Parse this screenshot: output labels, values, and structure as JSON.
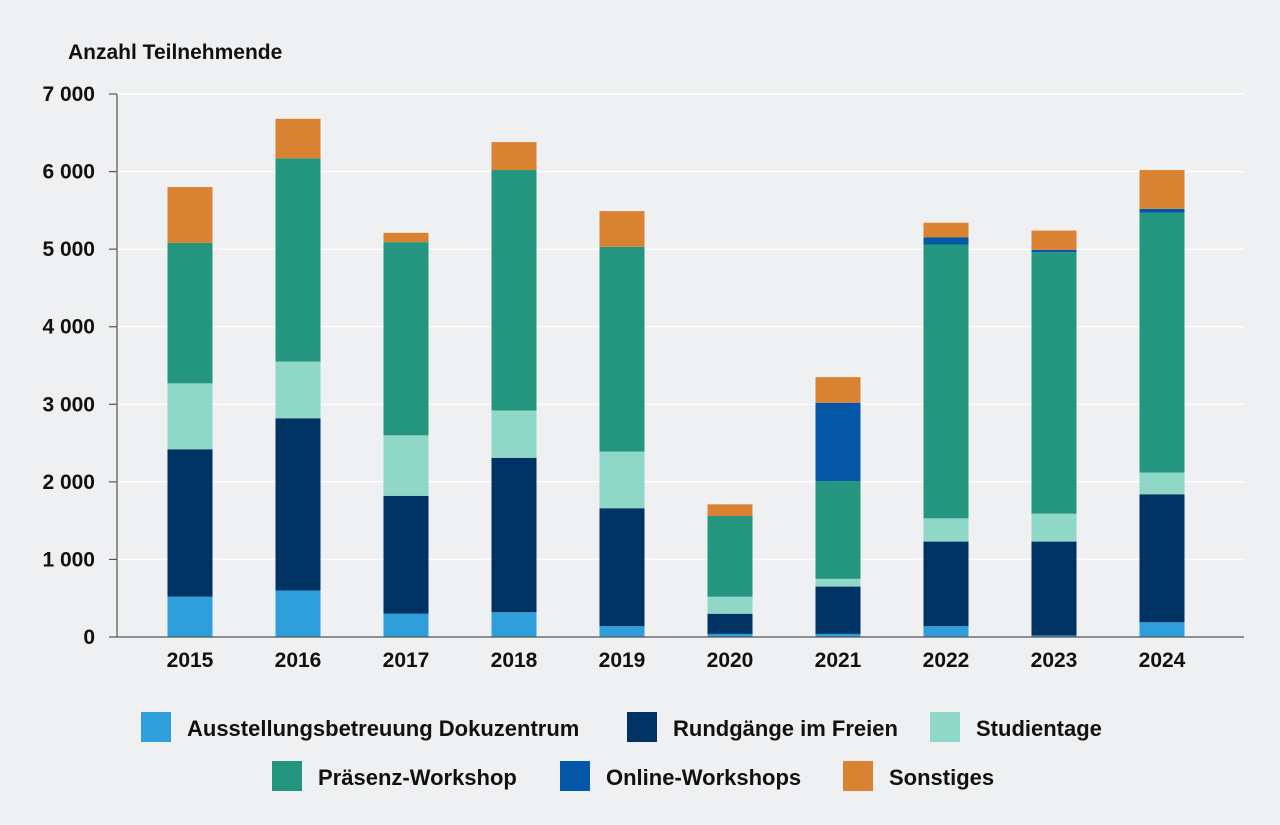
{
  "chart_data": {
    "type": "bar",
    "stacked": true,
    "title": "",
    "xlabel": "",
    "ylabel": "Anzahl Teilnehmende",
    "ylim": [
      0,
      7000
    ],
    "yticks": [
      0,
      1000,
      2000,
      3000,
      4000,
      5000,
      6000,
      7000
    ],
    "ytick_labels": [
      "0",
      "1 000",
      "2 000",
      "3 000",
      "4 000",
      "5 000",
      "6 000",
      "7 000"
    ],
    "grid": true,
    "legend_position": "bottom",
    "categories": [
      "2015",
      "2016",
      "2017",
      "2018",
      "2019",
      "2020",
      "2021",
      "2022",
      "2023",
      "2024"
    ],
    "series": [
      {
        "name": "Ausstellungsbetreuung Dokuzentrum",
        "color": "#2e9fdb",
        "values": [
          520,
          600,
          300,
          320,
          140,
          40,
          40,
          140,
          20,
          190
        ]
      },
      {
        "name": "Rundgänge im Freien",
        "color": "#003264",
        "values": [
          1900,
          2220,
          1520,
          1990,
          1520,
          260,
          610,
          1090,
          1210,
          1650
        ]
      },
      {
        "name": "Studientage",
        "color": "#8fd8c8",
        "values": [
          850,
          730,
          780,
          610,
          730,
          220,
          100,
          300,
          360,
          280
        ]
      },
      {
        "name": "Präsenz-Workshop",
        "color": "#24967f",
        "values": [
          1810,
          2620,
          2490,
          3100,
          2640,
          1040,
          1260,
          3530,
          3370,
          3350
        ]
      },
      {
        "name": "Online-Workshops",
        "color": "#0457a6",
        "values": [
          0,
          0,
          0,
          0,
          0,
          0,
          1010,
          90,
          30,
          50
        ]
      },
      {
        "name": "Sonstiges",
        "color": "#d98332",
        "values": [
          720,
          510,
          120,
          360,
          460,
          150,
          330,
          190,
          250,
          500
        ]
      }
    ]
  }
}
